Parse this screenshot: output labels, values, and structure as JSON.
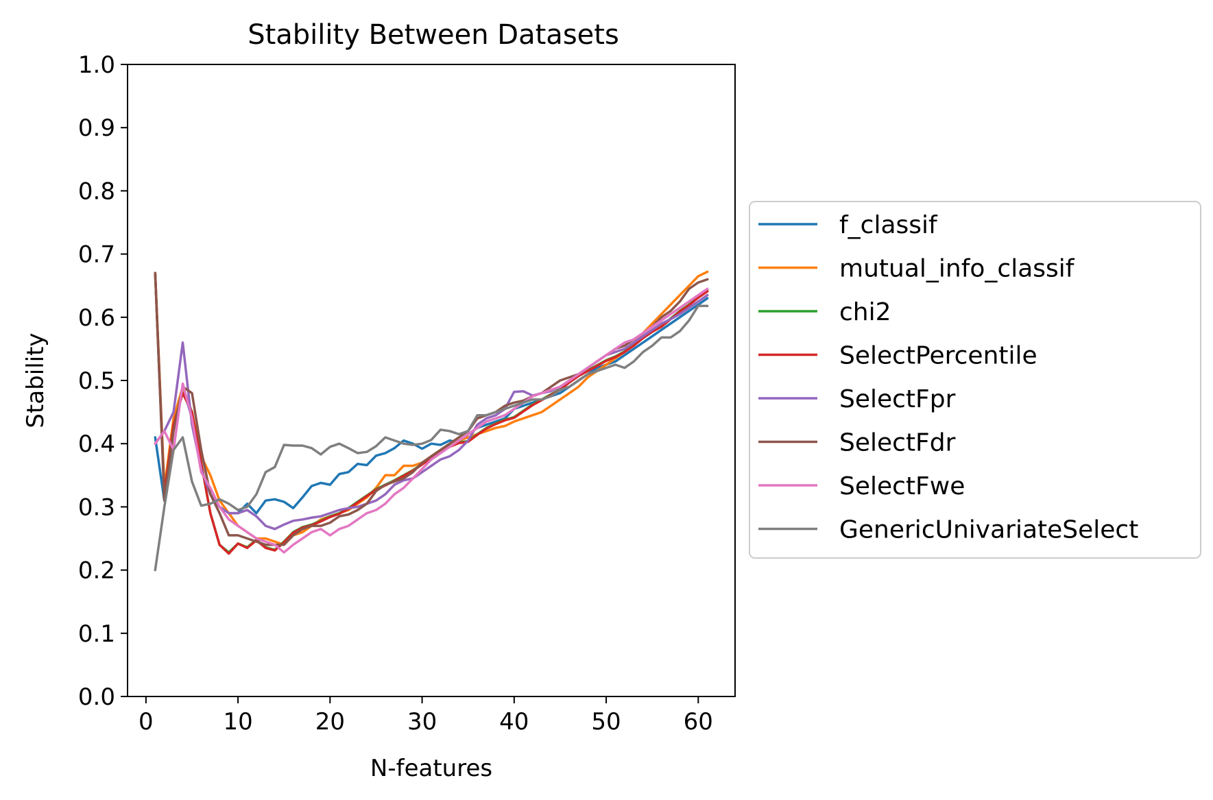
{
  "chart_data": {
    "type": "line",
    "title": "Stability Between Datasets",
    "xlabel": "N-features",
    "ylabel": "Stability",
    "xlim": [
      -2,
      64
    ],
    "ylim": [
      0.0,
      1.0
    ],
    "xticks": [
      0,
      10,
      20,
      30,
      40,
      50,
      60
    ],
    "yticks": [
      0.0,
      0.1,
      0.2,
      0.3,
      0.4,
      0.5,
      0.6,
      0.7,
      0.8,
      0.9,
      1.0
    ],
    "grid": false,
    "legend_position": "outside-right",
    "series": [
      {
        "name": "f_classif",
        "color": "#1f77b4",
        "x": [
          1,
          2,
          3,
          4,
          5,
          6,
          7,
          8,
          9,
          10,
          11,
          12,
          13,
          14,
          15,
          16,
          17,
          18,
          19,
          20,
          21,
          22,
          23,
          24,
          25,
          26,
          27,
          28,
          29,
          30,
          31,
          32,
          33,
          34,
          35,
          36,
          37,
          38,
          39,
          40,
          41,
          42,
          43,
          44,
          45,
          46,
          47,
          48,
          49,
          50,
          51,
          52,
          53,
          54,
          55,
          56,
          57,
          58,
          59,
          60,
          61
        ],
        "y": [
          0.41,
          0.31,
          0.43,
          0.49,
          0.44,
          0.36,
          0.32,
          0.3,
          0.29,
          0.29,
          0.305,
          0.29,
          0.31,
          0.312,
          0.308,
          0.298,
          0.315,
          0.333,
          0.338,
          0.335,
          0.352,
          0.355,
          0.368,
          0.366,
          0.381,
          0.385,
          0.393,
          0.405,
          0.4,
          0.392,
          0.4,
          0.398,
          0.405,
          0.402,
          0.415,
          0.425,
          0.43,
          0.435,
          0.44,
          0.455,
          0.46,
          0.465,
          0.47,
          0.475,
          0.48,
          0.49,
          0.5,
          0.51,
          0.52,
          0.525,
          0.53,
          0.54,
          0.55,
          0.56,
          0.57,
          0.58,
          0.59,
          0.6,
          0.61,
          0.62,
          0.63
        ]
      },
      {
        "name": "mutual_info_classif",
        "color": "#ff7f0e",
        "x": [
          1,
          2,
          3,
          4,
          5,
          6,
          7,
          8,
          9,
          10,
          11,
          12,
          13,
          14,
          15,
          16,
          17,
          18,
          19,
          20,
          21,
          22,
          23,
          24,
          25,
          26,
          27,
          28,
          29,
          30,
          31,
          32,
          33,
          34,
          35,
          36,
          37,
          38,
          39,
          40,
          41,
          42,
          43,
          44,
          45,
          46,
          47,
          48,
          49,
          50,
          51,
          52,
          53,
          54,
          55,
          56,
          57,
          58,
          59,
          60,
          61
        ],
        "y": [
          0.67,
          0.33,
          0.44,
          0.49,
          0.45,
          0.38,
          0.35,
          0.31,
          0.29,
          0.27,
          0.26,
          0.25,
          0.25,
          0.245,
          0.24,
          0.255,
          0.26,
          0.27,
          0.28,
          0.285,
          0.29,
          0.295,
          0.305,
          0.315,
          0.33,
          0.35,
          0.35,
          0.365,
          0.365,
          0.37,
          0.38,
          0.39,
          0.4,
          0.405,
          0.41,
          0.415,
          0.42,
          0.425,
          0.428,
          0.435,
          0.44,
          0.445,
          0.45,
          0.46,
          0.47,
          0.48,
          0.49,
          0.505,
          0.515,
          0.525,
          0.535,
          0.545,
          0.56,
          0.575,
          0.59,
          0.605,
          0.62,
          0.635,
          0.65,
          0.665,
          0.672
        ]
      },
      {
        "name": "chi2",
        "color": "#2ca02c",
        "x": [
          1,
          2,
          3,
          4,
          5,
          6,
          7,
          8,
          9,
          10,
          11,
          12,
          13,
          14,
          15,
          16,
          17,
          18,
          19,
          20,
          21,
          22,
          23,
          24,
          25,
          26,
          27,
          28,
          29,
          30,
          31,
          32,
          33,
          34,
          35,
          36,
          37,
          38,
          39,
          40,
          41,
          42,
          43,
          44,
          45,
          46,
          47,
          48,
          49,
          50,
          51,
          52,
          53,
          54,
          55,
          56,
          57,
          58,
          59,
          60,
          61
        ],
        "y": [
          0.67,
          0.32,
          0.43,
          0.48,
          0.45,
          0.37,
          0.29,
          0.24,
          0.228,
          0.242,
          0.236,
          0.248,
          0.236,
          0.232,
          0.245,
          0.26,
          0.268,
          0.272,
          0.278,
          0.285,
          0.29,
          0.298,
          0.308,
          0.318,
          0.328,
          0.335,
          0.342,
          0.35,
          0.358,
          0.368,
          0.378,
          0.388,
          0.396,
          0.402,
          0.404,
          0.415,
          0.425,
          0.432,
          0.438,
          0.442,
          0.452,
          0.462,
          0.47,
          0.478,
          0.486,
          0.498,
          0.508,
          0.516,
          0.524,
          0.532,
          0.538,
          0.546,
          0.556,
          0.568,
          0.578,
          0.586,
          0.598,
          0.61,
          0.62,
          0.632,
          0.642
        ]
      },
      {
        "name": "SelectPercentile",
        "color": "#d62728",
        "x": [
          1,
          2,
          3,
          4,
          5,
          6,
          7,
          8,
          9,
          10,
          11,
          12,
          13,
          14,
          15,
          16,
          17,
          18,
          19,
          20,
          21,
          22,
          23,
          24,
          25,
          26,
          27,
          28,
          29,
          30,
          31,
          32,
          33,
          34,
          35,
          36,
          37,
          38,
          39,
          40,
          41,
          42,
          43,
          44,
          45,
          46,
          47,
          48,
          49,
          50,
          51,
          52,
          53,
          54,
          55,
          56,
          57,
          58,
          59,
          60,
          61
        ],
        "y": [
          0.67,
          0.32,
          0.43,
          0.48,
          0.45,
          0.37,
          0.29,
          0.24,
          0.226,
          0.242,
          0.235,
          0.247,
          0.235,
          0.231,
          0.244,
          0.259,
          0.267,
          0.271,
          0.277,
          0.284,
          0.289,
          0.297,
          0.307,
          0.317,
          0.327,
          0.334,
          0.341,
          0.349,
          0.357,
          0.367,
          0.377,
          0.387,
          0.395,
          0.401,
          0.403,
          0.414,
          0.424,
          0.431,
          0.437,
          0.441,
          0.451,
          0.461,
          0.469,
          0.477,
          0.485,
          0.497,
          0.507,
          0.515,
          0.523,
          0.531,
          0.537,
          0.545,
          0.555,
          0.567,
          0.577,
          0.585,
          0.597,
          0.609,
          0.619,
          0.631,
          0.641
        ]
      },
      {
        "name": "SelectFpr",
        "color": "#9467bd",
        "x": [
          1,
          2,
          3,
          4,
          5,
          6,
          7,
          8,
          9,
          10,
          11,
          12,
          13,
          14,
          15,
          16,
          17,
          18,
          19,
          20,
          21,
          22,
          23,
          24,
          25,
          26,
          27,
          28,
          29,
          30,
          31,
          32,
          33,
          34,
          35,
          36,
          37,
          38,
          39,
          40,
          41,
          42,
          43,
          44,
          45,
          46,
          47,
          48,
          49,
          50,
          51,
          52,
          53,
          54,
          55,
          56,
          57,
          58,
          59,
          60,
          61
        ],
        "y": [
          0.4,
          0.42,
          0.45,
          0.56,
          0.43,
          0.36,
          0.32,
          0.3,
          0.29,
          0.29,
          0.295,
          0.285,
          0.27,
          0.265,
          0.272,
          0.278,
          0.28,
          0.283,
          0.285,
          0.29,
          0.295,
          0.298,
          0.3,
          0.305,
          0.31,
          0.32,
          0.335,
          0.342,
          0.345,
          0.355,
          0.365,
          0.375,
          0.38,
          0.39,
          0.405,
          0.43,
          0.44,
          0.445,
          0.455,
          0.482,
          0.483,
          0.476,
          0.48,
          0.483,
          0.49,
          0.5,
          0.51,
          0.52,
          0.53,
          0.54,
          0.545,
          0.55,
          0.56,
          0.57,
          0.58,
          0.59,
          0.597,
          0.605,
          0.615,
          0.625,
          0.635
        ]
      },
      {
        "name": "SelectFdr",
        "color": "#8c564b",
        "x": [
          1,
          2,
          3,
          4,
          5,
          6,
          7,
          8,
          9,
          10,
          11,
          12,
          13,
          14,
          15,
          16,
          17,
          18,
          19,
          20,
          21,
          22,
          23,
          24,
          25,
          26,
          27,
          28,
          29,
          30,
          31,
          32,
          33,
          34,
          35,
          36,
          37,
          38,
          39,
          40,
          41,
          42,
          43,
          44,
          45,
          46,
          47,
          48,
          49,
          50,
          51,
          52,
          53,
          54,
          55,
          56,
          57,
          58,
          59,
          60,
          61
        ],
        "y": [
          0.67,
          0.31,
          0.42,
          0.49,
          0.48,
          0.39,
          0.32,
          0.29,
          0.255,
          0.255,
          0.25,
          0.245,
          0.24,
          0.24,
          0.24,
          0.255,
          0.265,
          0.27,
          0.27,
          0.275,
          0.285,
          0.288,
          0.295,
          0.305,
          0.325,
          0.335,
          0.34,
          0.345,
          0.355,
          0.37,
          0.38,
          0.39,
          0.4,
          0.41,
          0.42,
          0.44,
          0.445,
          0.45,
          0.46,
          0.465,
          0.468,
          0.475,
          0.48,
          0.49,
          0.5,
          0.505,
          0.51,
          0.52,
          0.53,
          0.54,
          0.55,
          0.555,
          0.565,
          0.575,
          0.585,
          0.6,
          0.61,
          0.625,
          0.645,
          0.655,
          0.66
        ]
      },
      {
        "name": "SelectFwe",
        "color": "#e377c2",
        "x": [
          1,
          2,
          3,
          4,
          5,
          6,
          7,
          8,
          9,
          10,
          11,
          12,
          13,
          14,
          15,
          16,
          17,
          18,
          19,
          20,
          21,
          22,
          23,
          24,
          25,
          26,
          27,
          28,
          29,
          30,
          31,
          32,
          33,
          34,
          35,
          36,
          37,
          38,
          39,
          40,
          41,
          42,
          43,
          44,
          45,
          46,
          47,
          48,
          49,
          50,
          51,
          52,
          53,
          54,
          55,
          56,
          57,
          58,
          59,
          60,
          61
        ],
        "y": [
          0.4,
          0.42,
          0.39,
          0.495,
          0.44,
          0.355,
          0.33,
          0.3,
          0.28,
          0.27,
          0.26,
          0.25,
          0.245,
          0.24,
          0.228,
          0.24,
          0.25,
          0.26,
          0.265,
          0.255,
          0.265,
          0.27,
          0.28,
          0.29,
          0.295,
          0.305,
          0.32,
          0.33,
          0.345,
          0.36,
          0.375,
          0.385,
          0.395,
          0.405,
          0.415,
          0.425,
          0.435,
          0.44,
          0.445,
          0.455,
          0.465,
          0.475,
          0.48,
          0.485,
          0.49,
          0.5,
          0.51,
          0.52,
          0.53,
          0.54,
          0.55,
          0.56,
          0.565,
          0.575,
          0.585,
          0.595,
          0.605,
          0.615,
          0.625,
          0.635,
          0.645
        ]
      },
      {
        "name": "GenericUnivariateSelect",
        "color": "#7f7f7f",
        "x": [
          1,
          2,
          3,
          4,
          5,
          6,
          7,
          8,
          9,
          10,
          11,
          12,
          13,
          14,
          15,
          16,
          17,
          18,
          19,
          20,
          21,
          22,
          23,
          24,
          25,
          26,
          27,
          28,
          29,
          30,
          31,
          32,
          33,
          34,
          35,
          36,
          37,
          38,
          39,
          40,
          41,
          42,
          43,
          44,
          45,
          46,
          47,
          48,
          49,
          50,
          51,
          52,
          53,
          54,
          55,
          56,
          57,
          58,
          59,
          60,
          61
        ],
        "y": [
          0.2,
          0.3,
          0.39,
          0.41,
          0.34,
          0.302,
          0.305,
          0.312,
          0.305,
          0.295,
          0.3,
          0.32,
          0.355,
          0.363,
          0.398,
          0.397,
          0.397,
          0.393,
          0.383,
          0.395,
          0.4,
          0.393,
          0.385,
          0.387,
          0.396,
          0.41,
          0.405,
          0.4,
          0.398,
          0.4,
          0.406,
          0.422,
          0.42,
          0.415,
          0.42,
          0.445,
          0.445,
          0.45,
          0.455,
          0.46,
          0.465,
          0.47,
          0.47,
          0.475,
          0.485,
          0.49,
          0.5,
          0.51,
          0.515,
          0.52,
          0.525,
          0.52,
          0.53,
          0.545,
          0.555,
          0.568,
          0.568,
          0.578,
          0.595,
          0.618,
          0.618
        ]
      }
    ]
  }
}
